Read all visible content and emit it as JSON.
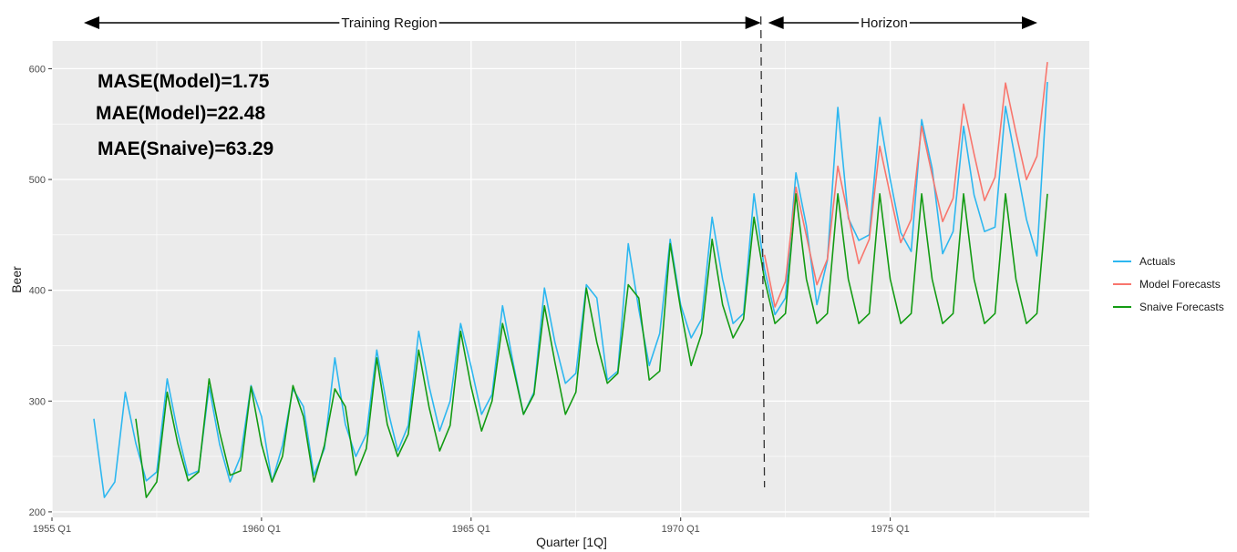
{
  "chart_data": {
    "type": "line",
    "xlabel": "Quarter [1Q]",
    "ylabel": "Beer",
    "xlim": [
      1955.0,
      1979.75
    ],
    "ylim": [
      195,
      625
    ],
    "x_ticks": [
      {
        "value": 1955.0,
        "label": "1955 Q1"
      },
      {
        "value": 1960.0,
        "label": "1960 Q1"
      },
      {
        "value": 1965.0,
        "label": "1965 Q1"
      },
      {
        "value": 1970.0,
        "label": "1970 Q1"
      },
      {
        "value": 1975.0,
        "label": "1975 Q1"
      }
    ],
    "y_ticks": [
      200,
      300,
      400,
      500,
      600
    ],
    "grid": true,
    "legend_position": "right",
    "annotations": {
      "training_label": "Training Region",
      "horizon_label": "Horizon",
      "split_x": 1972.0,
      "metrics": [
        "MASE(Model)=1.75",
        "MAE(Model)=22.48",
        "MAE(Snaive)=63.29"
      ]
    },
    "series": [
      {
        "name": "Actuals",
        "color": "#2db7f0",
        "x_start": 1956.0,
        "values": [
          284,
          213,
          227,
          308,
          262,
          228,
          236,
          320,
          272,
          233,
          237,
          313,
          261,
          227,
          250,
          314,
          286,
          227,
          260,
          311,
          295,
          233,
          257,
          339,
          279,
          250,
          270,
          346,
          294,
          255,
          278,
          363,
          313,
          273,
          300,
          370,
          331,
          288,
          306,
          386,
          335,
          288,
          308,
          402,
          353,
          316,
          325,
          405,
          393,
          319,
          327,
          442,
          383,
          332,
          361,
          446,
          387,
          357,
          374,
          466,
          410,
          370,
          379,
          487,
          419,
          378,
          393,
          506,
          458,
          387,
          427,
          565,
          465,
          445,
          450,
          556,
          500,
          452,
          435,
          554,
          510,
          433,
          453,
          548,
          486,
          453,
          457,
          566,
          515,
          464,
          431,
          588
        ]
      },
      {
        "name": "Model Forecasts",
        "color": "#f8766d",
        "x_start": 1972.0,
        "values": [
          432,
          385,
          408,
          493,
          449,
          405,
          428,
          512,
          467,
          424,
          446,
          530,
          486,
          443,
          464,
          548,
          504,
          462,
          483,
          568,
          523,
          481,
          502,
          587,
          542,
          500,
          521,
          606
        ]
      },
      {
        "name": "Snaive Forecasts",
        "color": "#139b13",
        "x_start": 1957.0,
        "values": [
          284,
          213,
          227,
          308,
          262,
          228,
          236,
          320,
          272,
          233,
          237,
          313,
          261,
          227,
          250,
          314,
          286,
          227,
          260,
          311,
          295,
          233,
          257,
          339,
          279,
          250,
          270,
          346,
          294,
          255,
          278,
          363,
          313,
          273,
          300,
          370,
          331,
          288,
          306,
          386,
          335,
          288,
          308,
          402,
          353,
          316,
          325,
          405,
          393,
          319,
          327,
          442,
          383,
          332,
          361,
          446,
          387,
          357,
          374,
          466,
          410,
          370,
          379,
          487,
          410,
          370,
          379,
          487,
          410,
          370,
          379,
          487,
          410,
          370,
          379,
          487,
          410,
          370,
          379,
          487,
          410,
          370,
          379,
          487,
          410,
          370,
          379,
          487
        ]
      }
    ]
  }
}
